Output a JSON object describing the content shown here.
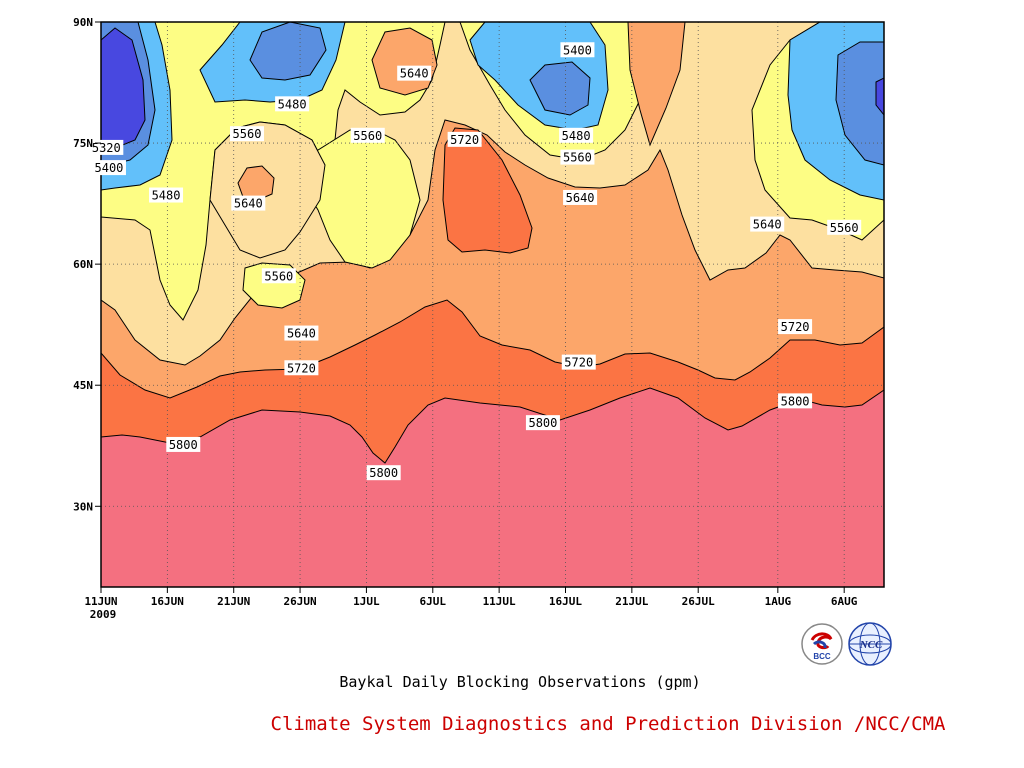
{
  "chart_data": {
    "type": "heatmap",
    "subtype": "filled-contour",
    "title": "Baykal Daily Blocking Observations (gpm)",
    "source": "Climate System Diagnostics and Prediction Division /NCC/CMA",
    "x_start_day": 0,
    "x_end_day": 59,
    "x_ticks": [
      {
        "day": 0,
        "label": "11JUN",
        "sublabel": "2009"
      },
      {
        "day": 5,
        "label": "16JUN"
      },
      {
        "day": 10,
        "label": "21JUN"
      },
      {
        "day": 15,
        "label": "26JUN"
      },
      {
        "day": 20,
        "label": "1JUL"
      },
      {
        "day": 25,
        "label": "6JUL"
      },
      {
        "day": 30,
        "label": "11JUL"
      },
      {
        "day": 35,
        "label": "16JUL"
      },
      {
        "day": 40,
        "label": "21JUL"
      },
      {
        "day": 45,
        "label": "26JUL"
      },
      {
        "day": 51,
        "label": "1AUG"
      },
      {
        "day": 56,
        "label": "6AUG"
      }
    ],
    "ylim": [
      20,
      90
    ],
    "y_ticks": [
      {
        "value": 30,
        "label": "30N"
      },
      {
        "value": 45,
        "label": "45N"
      },
      {
        "value": 60,
        "label": "60N"
      },
      {
        "value": 75,
        "label": "75N"
      },
      {
        "value": 90,
        "label": "90N"
      }
    ],
    "grid": "dotted",
    "contour_levels": [
      5320,
      5400,
      5480,
      5560,
      5640,
      5720,
      5800
    ],
    "level_colors": {
      "below_5320": "#4848e0",
      "5320_5400": "#5a8fe0",
      "5400_5480": "#62c0fa",
      "5480_5560": "#fdfd84",
      "5560_5640": "#fde0a0",
      "5640_5720": "#fca66a",
      "5720_5800": "#fb7444",
      "above_5800": "#f47080"
    },
    "contour_labels": [
      {
        "text": "5320",
        "day": 0.4,
        "lat": 74.4
      },
      {
        "text": "5400",
        "day": 0.6,
        "lat": 71.9
      },
      {
        "text": "5480",
        "day": 4.9,
        "lat": 68.5
      },
      {
        "text": "5480",
        "day": 14.4,
        "lat": 79.8
      },
      {
        "text": "5560",
        "day": 11.0,
        "lat": 76.1
      },
      {
        "text": "5560",
        "day": 20.1,
        "lat": 75.9
      },
      {
        "text": "5560",
        "day": 13.4,
        "lat": 58.5
      },
      {
        "text": "5640",
        "day": 11.1,
        "lat": 67.5
      },
      {
        "text": "5640",
        "day": 23.6,
        "lat": 83.6
      },
      {
        "text": "5640",
        "day": 15.1,
        "lat": 51.4
      },
      {
        "text": "5720",
        "day": 27.4,
        "lat": 75.4
      },
      {
        "text": "5400",
        "day": 35.9,
        "lat": 86.5
      },
      {
        "text": "5480",
        "day": 35.8,
        "lat": 75.9
      },
      {
        "text": "5560",
        "day": 35.9,
        "lat": 73.2
      },
      {
        "text": "5640",
        "day": 36.1,
        "lat": 68.2
      },
      {
        "text": "5720",
        "day": 15.1,
        "lat": 47.1
      },
      {
        "text": "5720",
        "day": 36.0,
        "lat": 47.8
      },
      {
        "text": "5640",
        "day": 50.2,
        "lat": 64.9
      },
      {
        "text": "5560",
        "day": 56.0,
        "lat": 64.5
      },
      {
        "text": "5720",
        "day": 52.3,
        "lat": 52.2
      },
      {
        "text": "5800",
        "day": 6.2,
        "lat": 37.6
      },
      {
        "text": "5800",
        "day": 21.3,
        "lat": 34.1
      },
      {
        "text": "5800",
        "day": 33.3,
        "lat": 40.3
      },
      {
        "text": "5800",
        "day": 52.3,
        "lat": 43.0
      }
    ]
  },
  "logos": {
    "left_logo_text": "BCC",
    "right_logo_text": "NCC"
  }
}
